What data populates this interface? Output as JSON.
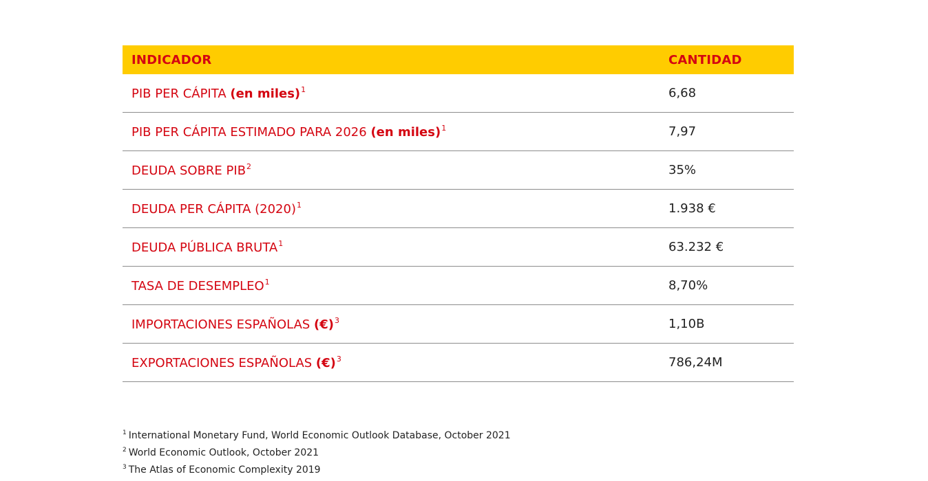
{
  "table": {
    "header": {
      "indicator": "INDICADOR",
      "amount": "CANTIDAD"
    },
    "rows": [
      {
        "label": "PIB PER CÁPITA ",
        "unit": "(en miles)",
        "ref": "1",
        "value": "6,68"
      },
      {
        "label": "PIB PER CÁPITA ESTIMADO PARA 2026 ",
        "unit": "(en miles)",
        "ref": "1",
        "value": "7,97"
      },
      {
        "label": "DEUDA SOBRE PIB",
        "unit": "",
        "ref": "2",
        "value": "35%"
      },
      {
        "label": "DEUDA PER CÁPITA (2020)",
        "unit": "",
        "ref": "1",
        "value": "1.938 €"
      },
      {
        "label": "DEUDA PÚBLICA BRUTA",
        "unit": "",
        "ref": "1",
        "value": "63.232 €"
      },
      {
        "label": "TASA DE DESEMPLEO",
        "unit": "",
        "ref": "1",
        "value": "8,70%"
      },
      {
        "label": "IMPORTACIONES ESPAÑOLAS ",
        "unit": "(€)",
        "ref": "3",
        "value": "1,10B"
      },
      {
        "label": "EXPORTACIONES ESPAÑOLAS ",
        "unit": "(€)",
        "ref": "3",
        "value": "786,24M"
      }
    ]
  },
  "footnotes": [
    {
      "ref": "1",
      "text": "International Monetary Fund, World Economic Outlook Database, October 2021"
    },
    {
      "ref": "2",
      "text": "World Economic Outlook, October 2021"
    },
    {
      "ref": "3",
      "text": "The Atlas of Economic Complexity 2019"
    }
  ],
  "colors": {
    "header_bg": "#FFCC00",
    "accent_red": "#D40511",
    "text_dark": "#222222",
    "divider": "#8c8c8c"
  }
}
